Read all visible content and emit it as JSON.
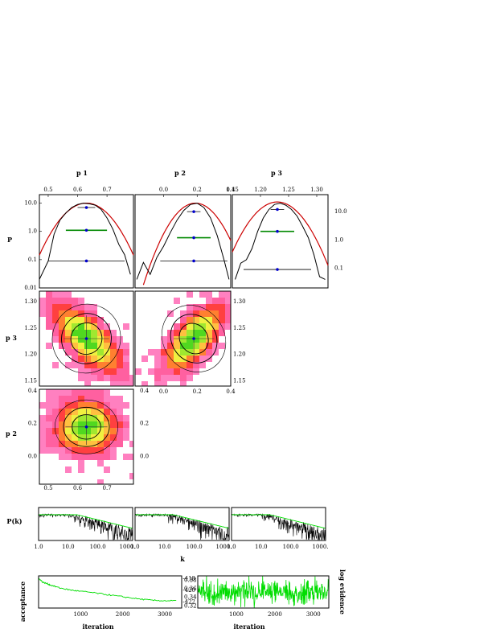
{
  "chart_data": [
    {
      "id": "p1-marginal",
      "type": "line",
      "title": "p 1",
      "ylabel": "P",
      "xlim": [
        0.47,
        0.79
      ],
      "ylim_log": [
        0.01,
        20
      ],
      "yscale": "log",
      "xticks": [
        "0.5",
        "0.6",
        "0.7"
      ],
      "yticks": [
        "10.0",
        "1.0",
        "0.1",
        "0.01"
      ],
      "histogram": {
        "x": [
          0.47,
          0.5,
          0.52,
          0.54,
          0.56,
          0.58,
          0.6,
          0.62,
          0.64,
          0.66,
          0.68,
          0.7,
          0.72,
          0.74,
          0.76,
          0.78
        ],
        "y": [
          0.02,
          0.09,
          0.8,
          2.5,
          4.5,
          7,
          9,
          10,
          9.5,
          8.5,
          6,
          3,
          1.2,
          0.35,
          0.15,
          0.03
        ]
      },
      "fit_mean": 0.63,
      "fit_sigma": 0.055,
      "fit_peak": 10,
      "levels": [
        {
          "y": 7.0,
          "half": 0.03
        },
        {
          "y": 1.1,
          "half": 0.07
        },
        {
          "y": 0.09,
          "half": 0.13
        }
      ],
      "mean": 0.63
    },
    {
      "id": "p2-marginal",
      "type": "line",
      "title": "p 2",
      "xlim": [
        -0.17,
        0.4
      ],
      "ylim_log": [
        0.01,
        20
      ],
      "yscale": "log",
      "xticks": [
        "0.0",
        "0.2",
        "0.4"
      ],
      "histogram": {
        "x": [
          -0.16,
          -0.12,
          -0.08,
          -0.04,
          0.0,
          0.04,
          0.08,
          0.12,
          0.16,
          0.2,
          0.24,
          0.28,
          0.32,
          0.36,
          0.39
        ],
        "y": [
          0.02,
          0.08,
          0.03,
          0.12,
          0.3,
          0.9,
          2.5,
          5.5,
          9,
          10,
          7,
          3,
          0.7,
          0.1,
          0.02
        ]
      },
      "fit_mean": 0.19,
      "fit_sigma": 0.085,
      "fit_peak": 10,
      "levels": [
        {
          "y": 5.0,
          "half": 0.04
        },
        {
          "y": 0.6,
          "half": 0.1
        },
        {
          "y": 0.09,
          "half": 0.2
        }
      ],
      "mean": 0.18
    },
    {
      "id": "p3-marginal",
      "type": "line",
      "title": "p 3",
      "xlim": [
        1.15,
        1.32
      ],
      "ylim_log": [
        0.02,
        40
      ],
      "yscale": "log",
      "xticks": [
        "1.15",
        "1.20",
        "1.25",
        "1.30"
      ],
      "right_yticks": [
        "10.0",
        "1.0",
        "0.1"
      ],
      "histogram": {
        "x": [
          1.155,
          1.165,
          1.175,
          1.185,
          1.195,
          1.205,
          1.215,
          1.225,
          1.235,
          1.245,
          1.255,
          1.265,
          1.275,
          1.285,
          1.295,
          1.305,
          1.315
        ],
        "y": [
          0.04,
          0.15,
          0.2,
          0.5,
          2,
          6,
          12,
          18,
          20,
          17,
          12,
          7,
          3,
          1.2,
          0.3,
          0.05,
          0.04
        ]
      },
      "fit_mean": 1.23,
      "fit_sigma": 0.028,
      "fit_peak": 22,
      "levels": [
        {
          "y": 12,
          "half": 0.012
        },
        {
          "y": 2.0,
          "half": 0.03
        },
        {
          "y": 0.09,
          "half": 0.06
        }
      ],
      "mean": 1.23
    },
    {
      "id": "p3-vs-p1",
      "type": "heatmap",
      "ylabel": "p 3",
      "xlim": [
        0.47,
        0.79
      ],
      "ylim": [
        1.14,
        1.32
      ],
      "yticks": [
        "1.15",
        "1.20",
        "1.25",
        "1.30"
      ],
      "center": [
        0.63,
        1.23
      ],
      "spread": [
        0.07,
        0.04
      ],
      "correlation": -0.7,
      "mean": [
        0.63,
        1.23
      ]
    },
    {
      "id": "p3-vs-p2",
      "type": "heatmap",
      "xlim": [
        -0.17,
        0.4
      ],
      "ylim": [
        1.14,
        1.32
      ],
      "xticks": [
        "0.0",
        "0.2",
        "0.4"
      ],
      "right_yticks": [
        "1.30",
        "1.25",
        "1.20",
        "1.15"
      ],
      "center": [
        0.18,
        1.23
      ],
      "spread": [
        0.11,
        0.04
      ],
      "correlation": 0.7,
      "mean": [
        0.18,
        1.23
      ]
    },
    {
      "id": "p2-vs-p1",
      "type": "heatmap",
      "ylabel": "p 2",
      "xlim": [
        0.47,
        0.79
      ],
      "ylim": [
        -0.17,
        0.41
      ],
      "xticks": [
        "0.5",
        "0.6",
        "0.7"
      ],
      "yticks": [
        "0.4",
        "0.2",
        "0.0"
      ],
      "right_yticks": [
        "0.4",
        "0.2",
        "0.0"
      ],
      "center": [
        0.63,
        0.18
      ],
      "spread": [
        0.065,
        0.1
      ],
      "correlation": 0.0,
      "mean": [
        0.63,
        0.18
      ]
    }
  ],
  "power_spectra": {
    "ylabel": "P(k)",
    "xlabel": "k",
    "xscale": "log",
    "xlim": [
      1,
      1500
    ],
    "xticks": [
      "1.0",
      "10.0",
      "100.0",
      "1000."
    ],
    "panels": 3
  },
  "trace_left": {
    "type": "line",
    "xlabel": "iteration",
    "ylabel": "acceptance",
    "xlim": [
      0,
      3400
    ],
    "ylim": [
      0.315,
      0.39
    ],
    "xticks": [
      "1000",
      "2000",
      "3000"
    ],
    "right_yticks": [
      "0.38",
      "0.36",
      "0.34",
      "0.32"
    ],
    "series": {
      "x": [
        0,
        100,
        200,
        300,
        500,
        700,
        900,
        1200,
        1500,
        1800,
        2100,
        2400,
        2700,
        3000,
        3300
      ],
      "y": [
        0.385,
        0.375,
        0.372,
        0.368,
        0.362,
        0.358,
        0.355,
        0.352,
        0.348,
        0.344,
        0.34,
        0.336,
        0.333,
        0.332,
        0.332
      ]
    }
  },
  "trace_right": {
    "type": "line",
    "xlabel": "iteration",
    "ylabel": "log evidence",
    "xlim": [
      0,
      3400
    ],
    "ylim": [
      -423,
      -417.5
    ],
    "xticks": [
      "1000",
      "2000",
      "3000"
    ],
    "left_yticks": [
      "-418",
      "-420",
      "-422"
    ]
  },
  "colors": {
    "histogram": "#000000",
    "fit": "#cc0000",
    "level": "#008800",
    "mean_marker": "#0000cc",
    "trace": "#00dd00",
    "heat": [
      "#ff80c0",
      "#ff60a0",
      "#ff4040",
      "#ff8030",
      "#ffc040",
      "#f0f040",
      "#a0e830",
      "#50d820"
    ]
  }
}
